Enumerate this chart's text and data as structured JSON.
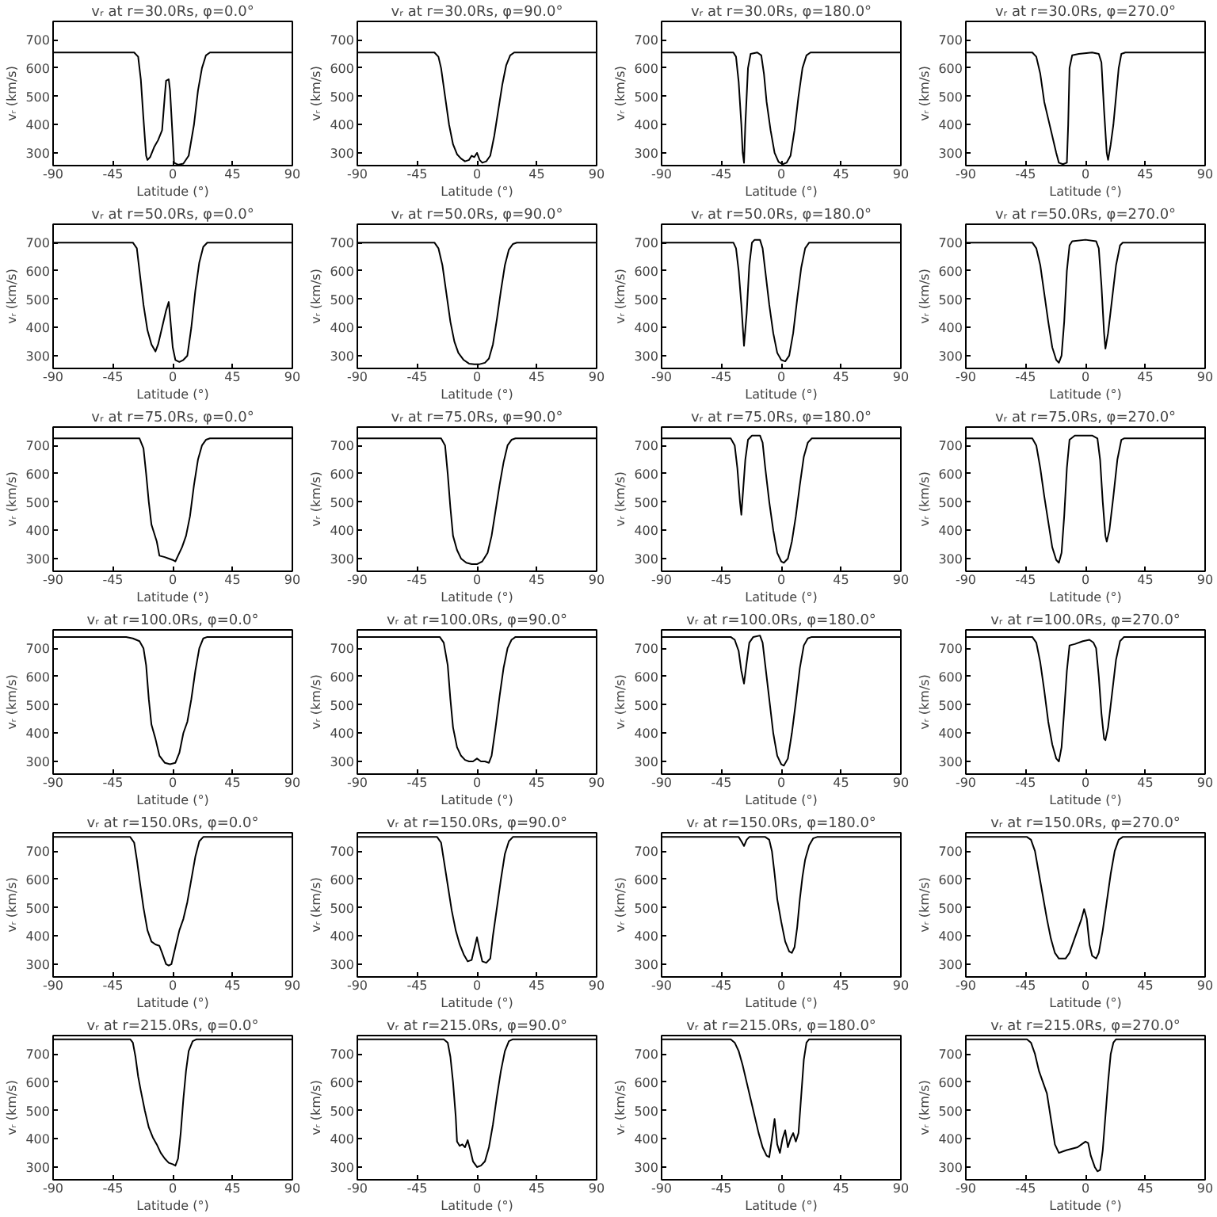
{
  "chart_data": [
    {
      "type": "line",
      "title": "vᵣ at r=30.0Rs, φ=0.0°",
      "xlabel": "Latitude (°)",
      "ylabel": "vᵣ (km/s)",
      "xlim": [
        -90,
        90
      ],
      "ylim": [
        255,
        765
      ],
      "xticks": [
        -90,
        -45,
        0,
        45,
        90
      ],
      "yticks": [
        300,
        400,
        500,
        600,
        700
      ],
      "color": "#000000",
      "x": [
        -90,
        -29,
        -26,
        -24,
        -22,
        -20,
        -19,
        -17,
        -14,
        -11,
        -8,
        -6,
        -5,
        -3,
        -2,
        0,
        1,
        4,
        8,
        12,
        16,
        19,
        22,
        25,
        28,
        90
      ],
      "values": [
        655,
        655,
        640,
        560,
        420,
        290,
        275,
        285,
        320,
        345,
        380,
        500,
        555,
        560,
        520,
        350,
        265,
        258,
        262,
        290,
        400,
        520,
        600,
        645,
        655,
        655
      ]
    },
    {
      "type": "line",
      "title": "vᵣ at r=30.0Rs, φ=90.0°",
      "xlabel": "Latitude (°)",
      "ylabel": "vᵣ (km/s)",
      "xlim": [
        -90,
        90
      ],
      "ylim": [
        255,
        765
      ],
      "xticks": [
        -90,
        -45,
        0,
        45,
        90
      ],
      "yticks": [
        300,
        400,
        500,
        600,
        700
      ],
      "color": "#000000",
      "x": [
        -90,
        -32,
        -29,
        -27,
        -24,
        -21,
        -18,
        -15,
        -12,
        -9,
        -6,
        -4,
        -2,
        0,
        2,
        4,
        7,
        10,
        13,
        16,
        19,
        22,
        25,
        28,
        90
      ],
      "values": [
        655,
        655,
        640,
        600,
        500,
        400,
        330,
        295,
        280,
        270,
        275,
        290,
        285,
        300,
        275,
        265,
        270,
        290,
        360,
        450,
        540,
        610,
        645,
        655,
        655
      ]
    },
    {
      "type": "line",
      "title": "vᵣ at r=30.0Rs, φ=180.0°",
      "xlabel": "Latitude (°)",
      "ylabel": "vᵣ (km/s)",
      "xlim": [
        -90,
        90
      ],
      "ylim": [
        255,
        765
      ],
      "xticks": [
        -90,
        -45,
        0,
        45,
        90
      ],
      "yticks": [
        300,
        400,
        500,
        600,
        700
      ],
      "color": "#000000",
      "x": [
        -90,
        -36,
        -34,
        -32,
        -30,
        -29,
        -28,
        -27,
        -25,
        -23,
        -18,
        -15,
        -13,
        -11,
        -8,
        -5,
        -2,
        1,
        4,
        7,
        10,
        13,
        16,
        19,
        22,
        90
      ],
      "values": [
        655,
        655,
        640,
        550,
        400,
        300,
        265,
        400,
        600,
        650,
        655,
        645,
        580,
        480,
        380,
        300,
        268,
        260,
        265,
        290,
        380,
        500,
        600,
        645,
        655,
        655
      ]
    },
    {
      "type": "line",
      "title": "vᵣ at r=30.0Rs, φ=270.0°",
      "xlabel": "Latitude (°)",
      "ylabel": "vᵣ (km/s)",
      "xlim": [
        -90,
        90
      ],
      "ylim": [
        255,
        765
      ],
      "xticks": [
        -90,
        -45,
        0,
        45,
        90
      ],
      "yticks": [
        300,
        400,
        500,
        600,
        700
      ],
      "color": "#000000",
      "x": [
        -90,
        -40,
        -37,
        -34,
        -31,
        -28,
        -25,
        -22,
        -20,
        -17,
        -14,
        -13,
        -12,
        -10,
        -5,
        5,
        10,
        12,
        14,
        16,
        17,
        19,
        21,
        23,
        25,
        27,
        30,
        90
      ],
      "values": [
        655,
        655,
        640,
        580,
        480,
        420,
        360,
        300,
        265,
        260,
        265,
        400,
        600,
        645,
        650,
        655,
        650,
        620,
        450,
        300,
        275,
        330,
        400,
        500,
        600,
        650,
        655,
        655
      ]
    },
    {
      "type": "line",
      "title": "vᵣ at r=50.0Rs, φ=0.0°",
      "xlabel": "Latitude (°)",
      "ylabel": "vᵣ (km/s)",
      "xlim": [
        -90,
        90
      ],
      "ylim": [
        255,
        765
      ],
      "xticks": [
        -90,
        -45,
        0,
        45,
        90
      ],
      "yticks": [
        300,
        400,
        500,
        600,
        700
      ],
      "color": "#000000",
      "x": [
        -90,
        -30,
        -27,
        -25,
        -22,
        -19,
        -16,
        -13,
        -11,
        -8,
        -5,
        -3,
        -2,
        0,
        2,
        5,
        8,
        11,
        14,
        17,
        20,
        23,
        26,
        90
      ],
      "values": [
        700,
        700,
        680,
        600,
        480,
        390,
        340,
        315,
        340,
        400,
        460,
        490,
        440,
        330,
        285,
        278,
        285,
        300,
        400,
        530,
        630,
        685,
        700,
        700
      ]
    },
    {
      "type": "line",
      "title": "vᵣ at r=50.0Rs, φ=90.0°",
      "xlabel": "Latitude (°)",
      "ylabel": "vᵣ (km/s)",
      "xlim": [
        -90,
        90
      ],
      "ylim": [
        255,
        765
      ],
      "xticks": [
        -90,
        -45,
        0,
        45,
        90
      ],
      "yticks": [
        300,
        400,
        500,
        600,
        700
      ],
      "color": "#000000",
      "x": [
        -90,
        -32,
        -29,
        -26,
        -23,
        -20,
        -17,
        -14,
        -10,
        -6,
        -2,
        2,
        6,
        9,
        12,
        15,
        18,
        21,
        24,
        27,
        30,
        90
      ],
      "values": [
        700,
        700,
        680,
        620,
        520,
        420,
        350,
        310,
        285,
        272,
        270,
        270,
        275,
        290,
        340,
        430,
        530,
        620,
        675,
        695,
        700,
        700
      ]
    },
    {
      "type": "line",
      "title": "vᵣ at r=50.0Rs, φ=180.0°",
      "xlabel": "Latitude (°)",
      "ylabel": "vᵣ (km/s)",
      "xlim": [
        -90,
        90
      ],
      "ylim": [
        255,
        765
      ],
      "xticks": [
        -90,
        -45,
        0,
        45,
        90
      ],
      "yticks": [
        300,
        400,
        500,
        600,
        700
      ],
      "color": "#000000",
      "x": [
        -90,
        -36,
        -34,
        -32,
        -30,
        -28,
        -26,
        -24,
        -22,
        -20,
        -16,
        -14,
        -12,
        -9,
        -6,
        -3,
        0,
        3,
        6,
        9,
        12,
        15,
        18,
        21,
        90
      ],
      "values": [
        700,
        700,
        680,
        600,
        480,
        335,
        450,
        620,
        700,
        710,
        710,
        680,
        600,
        480,
        380,
        310,
        285,
        280,
        300,
        380,
        500,
        610,
        680,
        700,
        700
      ]
    },
    {
      "type": "line",
      "title": "vᵣ at r=50.0Rs, φ=270.0°",
      "xlabel": "Latitude (°)",
      "ylabel": "vᵣ (km/s)",
      "xlim": [
        -90,
        90
      ],
      "ylim": [
        255,
        765
      ],
      "xticks": [
        -90,
        -45,
        0,
        45,
        90
      ],
      "yticks": [
        300,
        400,
        500,
        600,
        700
      ],
      "color": "#000000",
      "x": [
        -90,
        -40,
        -37,
        -34,
        -31,
        -28,
        -25,
        -22,
        -20,
        -18,
        -16,
        -14,
        -12,
        -10,
        0,
        8,
        10,
        12,
        14,
        15,
        17,
        20,
        23,
        26,
        28,
        90
      ],
      "values": [
        700,
        700,
        680,
        620,
        520,
        420,
        330,
        285,
        275,
        300,
        420,
        600,
        690,
        705,
        710,
        705,
        680,
        550,
        380,
        325,
        380,
        500,
        620,
        690,
        700,
        700
      ]
    },
    {
      "type": "line",
      "title": "vᵣ at r=75.0Rs, φ=0.0°",
      "xlabel": "Latitude (°)",
      "ylabel": "vᵣ (km/s)",
      "xlim": [
        -90,
        90
      ],
      "ylim": [
        255,
        765
      ],
      "xticks": [
        -90,
        -45,
        0,
        45,
        90
      ],
      "yticks": [
        300,
        400,
        500,
        600,
        700
      ],
      "color": "#000000",
      "x": [
        -90,
        -25,
        -22,
        -20,
        -18,
        -16,
        -14,
        -12,
        -10,
        -6,
        -3,
        0,
        2,
        4,
        7,
        10,
        13,
        16,
        19,
        22,
        25,
        28,
        90
      ],
      "values": [
        725,
        725,
        690,
        600,
        500,
        420,
        390,
        360,
        310,
        305,
        300,
        295,
        290,
        310,
        340,
        380,
        450,
        560,
        650,
        700,
        720,
        725,
        725
      ]
    },
    {
      "type": "line",
      "title": "vᵣ at r=75.0Rs, φ=90.0°",
      "xlabel": "Latitude (°)",
      "ylabel": "vᵣ (km/s)",
      "xlim": [
        -90,
        90
      ],
      "ylim": [
        255,
        765
      ],
      "xticks": [
        -90,
        -45,
        0,
        45,
        90
      ],
      "yticks": [
        300,
        400,
        500,
        600,
        700
      ],
      "color": "#000000",
      "x": [
        -90,
        -27,
        -24,
        -22,
        -20,
        -18,
        -15,
        -12,
        -8,
        -4,
        0,
        4,
        8,
        11,
        14,
        17,
        20,
        23,
        26,
        29,
        90
      ],
      "values": [
        725,
        725,
        700,
        600,
        480,
        380,
        330,
        300,
        285,
        280,
        280,
        290,
        320,
        380,
        470,
        560,
        640,
        700,
        720,
        725,
        725
      ]
    },
    {
      "type": "line",
      "title": "vᵣ at r=75.0Rs, φ=180.0°",
      "xlabel": "Latitude (°)",
      "ylabel": "vᵣ (km/s)",
      "xlim": [
        -90,
        90
      ],
      "ylim": [
        255,
        765
      ],
      "xticks": [
        -90,
        -45,
        0,
        45,
        90
      ],
      "yticks": [
        300,
        400,
        500,
        600,
        700
      ],
      "color": "#000000",
      "x": [
        -90,
        -38,
        -35,
        -33,
        -31,
        -30,
        -29,
        -27,
        -25,
        -22,
        -16,
        -14,
        -12,
        -9,
        -6,
        -3,
        0,
        2,
        5,
        8,
        11,
        14,
        17,
        20,
        23,
        90
      ],
      "values": [
        725,
        725,
        700,
        620,
        500,
        455,
        520,
        650,
        720,
        735,
        735,
        710,
        620,
        500,
        400,
        320,
        290,
        285,
        300,
        360,
        450,
        560,
        660,
        710,
        725,
        725
      ]
    },
    {
      "type": "line",
      "title": "vᵣ at r=75.0Rs, φ=270.0°",
      "xlabel": "Latitude (°)",
      "ylabel": "vᵣ (km/s)",
      "xlim": [
        -90,
        90
      ],
      "ylim": [
        255,
        765
      ],
      "xticks": [
        -90,
        -45,
        0,
        45,
        90
      ],
      "yticks": [
        300,
        400,
        500,
        600,
        700
      ],
      "color": "#000000",
      "x": [
        -90,
        -40,
        -37,
        -34,
        -31,
        -28,
        -25,
        -22,
        -20,
        -18,
        -16,
        -14,
        -12,
        -8,
        5,
        9,
        11,
        13,
        15,
        16,
        18,
        21,
        24,
        27,
        29,
        90
      ],
      "values": [
        725,
        725,
        700,
        620,
        520,
        430,
        340,
        295,
        285,
        320,
        450,
        620,
        720,
        735,
        735,
        725,
        650,
        500,
        380,
        360,
        400,
        520,
        650,
        720,
        725,
        725
      ]
    },
    {
      "type": "line",
      "title": "vᵣ at r=100.0Rs, φ=0.0°",
      "xlabel": "Latitude (°)",
      "ylabel": "vᵣ (km/s)",
      "xlim": [
        -90,
        90
      ],
      "ylim": [
        255,
        765
      ],
      "xticks": [
        -90,
        -45,
        0,
        45,
        90
      ],
      "yticks": [
        300,
        400,
        500,
        600,
        700
      ],
      "color": "#000000",
      "x": [
        -90,
        -35,
        -30,
        -25,
        -22,
        -20,
        -18,
        -16,
        -13,
        -10,
        -6,
        -2,
        2,
        5,
        8,
        11,
        14,
        17,
        20,
        23,
        26,
        90
      ],
      "values": [
        740,
        740,
        735,
        725,
        700,
        640,
        520,
        430,
        380,
        320,
        295,
        290,
        295,
        330,
        400,
        440,
        520,
        620,
        700,
        735,
        740,
        740
      ]
    },
    {
      "type": "line",
      "title": "vᵣ at r=100.0Rs, φ=90.0°",
      "xlabel": "Latitude (°)",
      "ylabel": "vᵣ (km/s)",
      "xlim": [
        -90,
        90
      ],
      "ylim": [
        255,
        765
      ],
      "xticks": [
        -90,
        -45,
        0,
        45,
        90
      ],
      "yticks": [
        300,
        400,
        500,
        600,
        700
      ],
      "color": "#000000",
      "x": [
        -90,
        -28,
        -25,
        -22,
        -20,
        -18,
        -15,
        -12,
        -9,
        -6,
        -3,
        0,
        3,
        6,
        9,
        11,
        14,
        17,
        20,
        23,
        26,
        29,
        90
      ],
      "values": [
        740,
        740,
        720,
        640,
        520,
        420,
        350,
        320,
        305,
        300,
        300,
        310,
        300,
        300,
        295,
        320,
        420,
        530,
        630,
        700,
        730,
        740,
        740
      ]
    },
    {
      "type": "line",
      "title": "vᵣ at r=100.0Rs, φ=180.0°",
      "xlabel": "Latitude (°)",
      "ylabel": "vᵣ (km/s)",
      "xlim": [
        -90,
        90
      ],
      "ylim": [
        255,
        765
      ],
      "xticks": [
        -90,
        -45,
        0,
        45,
        90
      ],
      "yticks": [
        300,
        400,
        500,
        600,
        700
      ],
      "color": "#000000",
      "x": [
        -90,
        -38,
        -35,
        -32,
        -30,
        -28,
        -26,
        -24,
        -21,
        -16,
        -14,
        -12,
        -9,
        -6,
        -3,
        0,
        2,
        5,
        8,
        11,
        14,
        17,
        20,
        23,
        90
      ],
      "values": [
        740,
        740,
        730,
        690,
        620,
        575,
        650,
        720,
        740,
        745,
        720,
        640,
        520,
        400,
        320,
        290,
        285,
        310,
        400,
        510,
        630,
        710,
        735,
        740,
        740
      ]
    },
    {
      "type": "line",
      "title": "vᵣ at r=100.0Rs, φ=270.0°",
      "xlabel": "Latitude (°)",
      "ylabel": "vᵣ (km/s)",
      "xlim": [
        -90,
        90
      ],
      "ylim": [
        255,
        765
      ],
      "xticks": [
        -90,
        -45,
        0,
        45,
        90
      ],
      "yticks": [
        300,
        400,
        500,
        600,
        700
      ],
      "color": "#000000",
      "x": [
        -90,
        -40,
        -37,
        -34,
        -31,
        -28,
        -25,
        -22,
        -20,
        -18,
        -16,
        -14,
        -12,
        -8,
        -2,
        3,
        6,
        8,
        10,
        12,
        14,
        15,
        17,
        20,
        23,
        26,
        29,
        90
      ],
      "values": [
        740,
        740,
        720,
        650,
        550,
        440,
        360,
        310,
        300,
        350,
        480,
        620,
        710,
        715,
        725,
        730,
        720,
        700,
        600,
        470,
        380,
        375,
        420,
        540,
        660,
        725,
        740,
        740
      ]
    },
    {
      "type": "line",
      "title": "vᵣ at r=150.0Rs, φ=0.0°",
      "xlabel": "Latitude (°)",
      "ylabel": "vᵣ (km/s)",
      "xlim": [
        -90,
        90
      ],
      "ylim": [
        255,
        765
      ],
      "xticks": [
        -90,
        -45,
        0,
        45,
        90
      ],
      "yticks": [
        300,
        400,
        500,
        600,
        700
      ],
      "color": "#000000",
      "x": [
        -90,
        -32,
        -29,
        -27,
        -25,
        -22,
        -19,
        -16,
        -13,
        -10,
        -8,
        -5,
        -3,
        -1,
        2,
        5,
        8,
        11,
        14,
        17,
        20,
        23,
        90
      ],
      "values": [
        750,
        750,
        730,
        670,
        600,
        500,
        420,
        380,
        370,
        365,
        340,
        300,
        295,
        300,
        360,
        420,
        460,
        520,
        600,
        680,
        735,
        750,
        750
      ]
    },
    {
      "type": "line",
      "title": "vᵣ at r=150.0Rs, φ=90.0°",
      "xlabel": "Latitude (°)",
      "ylabel": "vᵣ (km/s)",
      "xlim": [
        -90,
        90
      ],
      "ylim": [
        255,
        765
      ],
      "xticks": [
        -90,
        -45,
        0,
        45,
        90
      ],
      "yticks": [
        300,
        400,
        500,
        600,
        700
      ],
      "color": "#000000",
      "x": [
        -90,
        -30,
        -27,
        -25,
        -22,
        -19,
        -16,
        -13,
        -10,
        -7,
        -4,
        -2,
        0,
        2,
        4,
        7,
        10,
        12,
        15,
        18,
        21,
        24,
        27,
        90
      ],
      "values": [
        750,
        750,
        730,
        670,
        580,
        490,
        420,
        370,
        335,
        310,
        315,
        355,
        395,
        350,
        310,
        305,
        320,
        400,
        500,
        600,
        690,
        735,
        750,
        750
      ]
    },
    {
      "type": "line",
      "title": "vᵣ at r=150.0Rs, φ=180.0°",
      "xlabel": "Latitude (°)",
      "ylabel": "vᵣ (km/s)",
      "xlim": [
        -90,
        90
      ],
      "ylim": [
        255,
        765
      ],
      "xticks": [
        -90,
        -45,
        0,
        45,
        90
      ],
      "yticks": [
        300,
        400,
        500,
        600,
        700
      ],
      "color": "#000000",
      "x": [
        -90,
        -32,
        -30,
        -28,
        -26,
        -24,
        -12,
        -9,
        -7,
        -5,
        -3,
        0,
        3,
        6,
        8,
        10,
        12,
        14,
        16,
        18,
        21,
        24,
        27,
        90
      ],
      "values": [
        750,
        750,
        735,
        718,
        740,
        750,
        750,
        740,
        700,
        620,
        530,
        450,
        380,
        345,
        340,
        360,
        430,
        530,
        610,
        670,
        720,
        745,
        750,
        750
      ]
    },
    {
      "type": "line",
      "title": "vᵣ at r=150.0Rs, φ=270.0°",
      "xlabel": "Latitude (°)",
      "ylabel": "vᵣ (km/s)",
      "xlim": [
        -90,
        90
      ],
      "ylim": [
        255,
        765
      ],
      "xticks": [
        -90,
        -45,
        0,
        45,
        90
      ],
      "yticks": [
        300,
        400,
        500,
        600,
        700
      ],
      "color": "#000000",
      "x": [
        -90,
        -44,
        -41,
        -38,
        -35,
        -32,
        -29,
        -26,
        -23,
        -20,
        -15,
        -12,
        -9,
        -6,
        -3,
        -1,
        1,
        3,
        5,
        8,
        10,
        13,
        16,
        19,
        22,
        25,
        28,
        90
      ],
      "values": [
        750,
        750,
        740,
        700,
        620,
        540,
        460,
        390,
        340,
        320,
        320,
        340,
        380,
        420,
        460,
        495,
        460,
        370,
        330,
        320,
        340,
        420,
        520,
        620,
        700,
        740,
        750,
        750
      ]
    },
    {
      "type": "line",
      "title": "vᵣ at r=215.0Rs, φ=0.0°",
      "xlabel": "Latitude (°)",
      "ylabel": "vᵣ (km/s)",
      "xlim": [
        -90,
        90
      ],
      "ylim": [
        255,
        765
      ],
      "xticks": [
        -90,
        -45,
        0,
        45,
        90
      ],
      "yticks": [
        300,
        400,
        500,
        600,
        700
      ],
      "color": "#000000",
      "x": [
        -90,
        -32,
        -30,
        -28,
        -26,
        -24,
        -21,
        -18,
        -15,
        -12,
        -9,
        -6,
        -3,
        0,
        2,
        4,
        6,
        8,
        10,
        12,
        15,
        18,
        90
      ],
      "values": [
        752,
        752,
        740,
        690,
        620,
        570,
        500,
        440,
        405,
        380,
        350,
        330,
        315,
        310,
        305,
        330,
        420,
        540,
        640,
        710,
        745,
        752,
        752
      ]
    },
    {
      "type": "line",
      "title": "vᵣ at r=215.0Rs, φ=90.0°",
      "xlabel": "Latitude (°)",
      "ylabel": "vᵣ (km/s)",
      "xlim": [
        -90,
        90
      ],
      "ylim": [
        255,
        765
      ],
      "xticks": [
        -90,
        -45,
        0,
        45,
        90
      ],
      "yticks": [
        300,
        400,
        500,
        600,
        700
      ],
      "color": "#000000",
      "x": [
        -90,
        -25,
        -22,
        -20,
        -18,
        -16,
        -15,
        -13,
        -11,
        -9,
        -7,
        -5,
        -3,
        0,
        3,
        6,
        9,
        12,
        15,
        18,
        21,
        24,
        27,
        90
      ],
      "values": [
        752,
        752,
        740,
        690,
        600,
        480,
        390,
        375,
        380,
        370,
        395,
        360,
        320,
        300,
        305,
        320,
        370,
        450,
        550,
        640,
        710,
        745,
        752,
        752
      ]
    },
    {
      "type": "line",
      "title": "vᵣ at r=215.0Rs, φ=180.0°",
      "xlabel": "Latitude (°)",
      "ylabel": "vᵣ (km/s)",
      "xlim": [
        -90,
        90
      ],
      "ylim": [
        255,
        765
      ],
      "xticks": [
        -90,
        -45,
        0,
        45,
        90
      ],
      "yticks": [
        300,
        400,
        500,
        600,
        700
      ],
      "color": "#000000",
      "x": [
        -90,
        -38,
        -35,
        -32,
        -29,
        -26,
        -23,
        -20,
        -17,
        -14,
        -11,
        -9,
        -7,
        -5,
        -3,
        -1,
        1,
        3,
        5,
        7,
        9,
        11,
        13,
        15,
        17,
        19,
        21,
        90
      ],
      "values": [
        752,
        752,
        740,
        710,
        660,
        600,
        540,
        480,
        420,
        370,
        340,
        335,
        400,
        470,
        380,
        350,
        400,
        430,
        370,
        400,
        420,
        390,
        420,
        550,
        680,
        740,
        752,
        752
      ]
    },
    {
      "type": "line",
      "title": "vᵣ at r=215.0Rs, φ=270.0°",
      "xlabel": "Latitude (°)",
      "ylabel": "vᵣ (km/s)",
      "xlim": [
        -90,
        90
      ],
      "ylim": [
        255,
        765
      ],
      "xticks": [
        -90,
        -45,
        0,
        45,
        90
      ],
      "yticks": [
        300,
        400,
        500,
        600,
        700
      ],
      "color": "#000000",
      "x": [
        -90,
        -44,
        -41,
        -38,
        -35,
        -32,
        -29,
        -26,
        -23,
        -20,
        -17,
        -14,
        -10,
        -6,
        -3,
        0,
        2,
        4,
        7,
        9,
        11,
        13,
        15,
        17,
        19,
        21,
        23,
        90
      ],
      "values": [
        752,
        752,
        740,
        700,
        640,
        600,
        560,
        470,
        380,
        350,
        355,
        360,
        365,
        370,
        380,
        390,
        385,
        340,
        300,
        285,
        290,
        360,
        480,
        600,
        700,
        740,
        752,
        752
      ]
    }
  ]
}
